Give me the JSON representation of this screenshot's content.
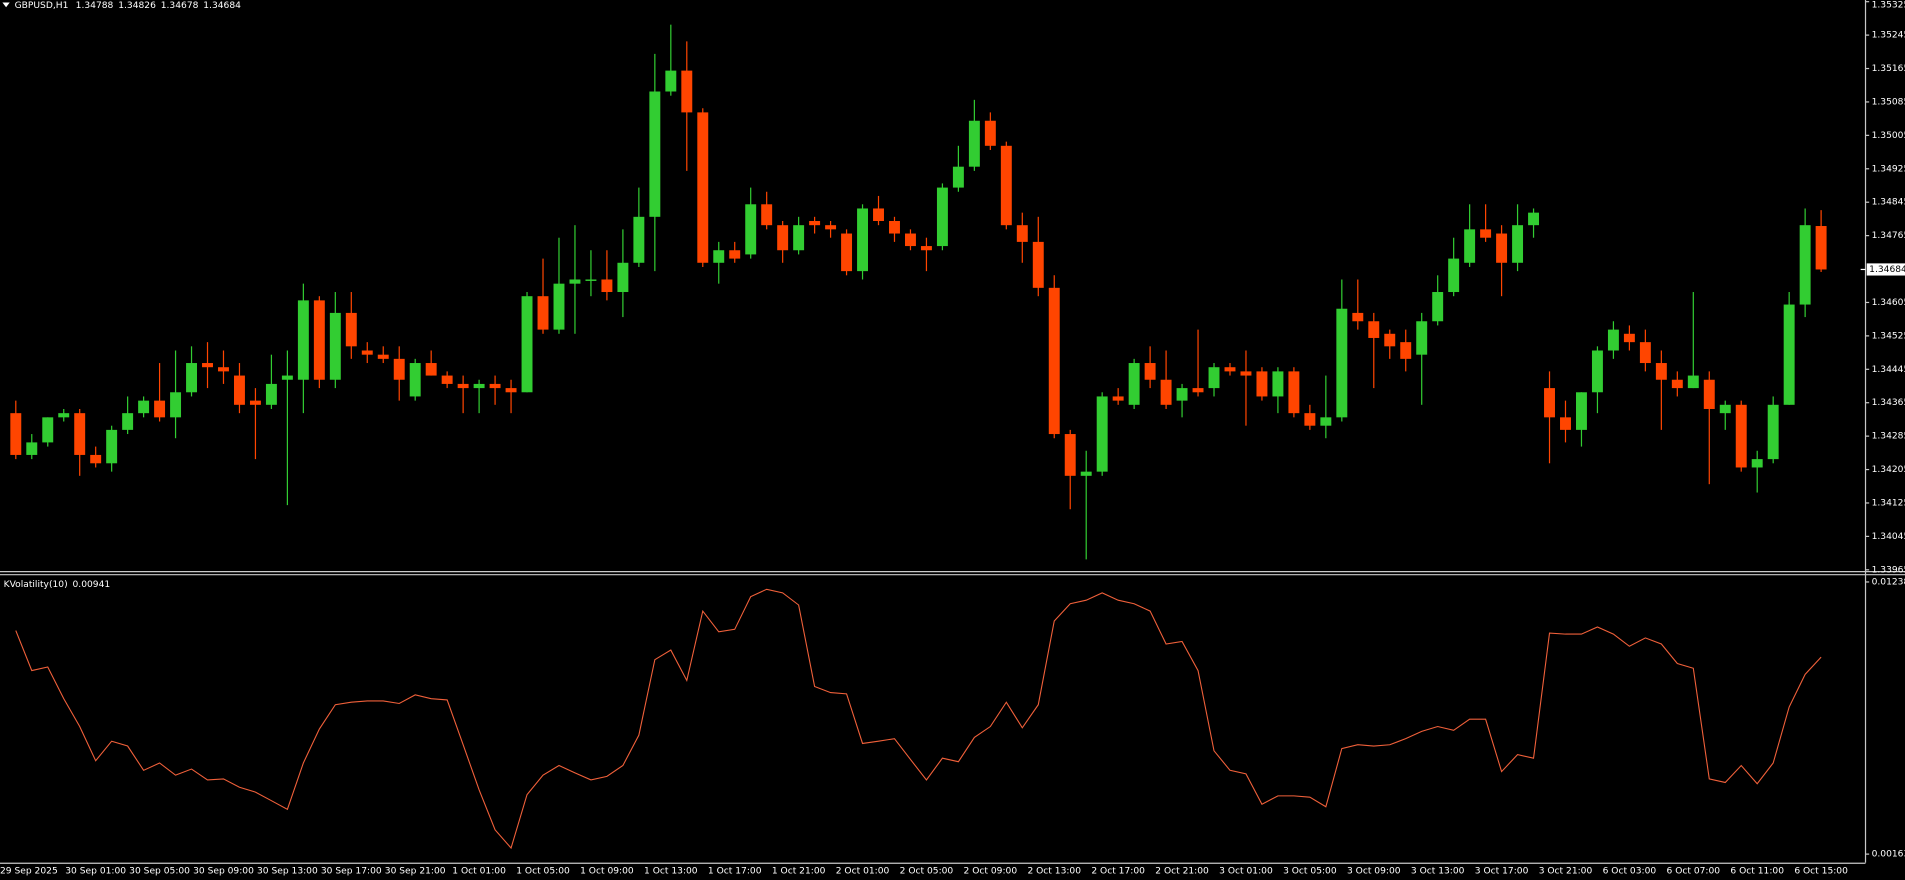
{
  "chart_data": [
    {
      "type": "candlestick",
      "title": "GBPUSD,H1",
      "categories": [
        "29 Sep 2025",
        null,
        null,
        null,
        null,
        "30 Sep 01:00",
        null,
        null,
        null,
        "30 Sep 05:00",
        null,
        null,
        null,
        "30 Sep 09:00",
        null,
        null,
        null,
        "30 Sep 13:00",
        null,
        null,
        null,
        "30 Sep 17:00",
        null,
        null,
        null,
        "30 Sep 21:00",
        null,
        null,
        null,
        "1 Oct 01:00",
        null,
        null,
        null,
        "1 Oct 05:00",
        null,
        null,
        null,
        "1 Oct 09:00",
        null,
        null,
        null,
        "1 Oct 13:00",
        null,
        null,
        null,
        "1 Oct 17:00",
        null,
        null,
        null,
        "1 Oct 21:00",
        null,
        null,
        null,
        "2 Oct 01:00",
        null,
        null,
        null,
        "2 Oct 05:00",
        null,
        null,
        null,
        "2 Oct 09:00",
        null,
        null,
        null,
        "2 Oct 13:00",
        null,
        null,
        null,
        "2 Oct 17:00",
        null,
        null,
        null,
        "2 Oct 21:00",
        null,
        null,
        null,
        "3 Oct 01:00",
        null,
        null,
        null,
        "3 Oct 05:00",
        null,
        null,
        null,
        "3 Oct 09:00",
        null,
        null,
        null,
        "3 Oct 13:00",
        null,
        null,
        null,
        "3 Oct 17:00",
        null,
        null,
        null,
        "3 Oct 21:00",
        null,
        null,
        null,
        "6 Oct 03:00",
        null,
        null,
        null,
        "6 Oct 07:00",
        null,
        null,
        null,
        "6 Oct 11:00",
        null,
        null,
        null,
        "6 Oct 15:00"
      ],
      "open": [
        1.3434,
        1.3424,
        1.3427,
        1.3433,
        1.3434,
        1.3424,
        1.3422,
        1.343,
        1.3434,
        1.3437,
        1.3433,
        1.3439,
        1.3446,
        1.3445,
        1.3443,
        1.3437,
        1.3436,
        1.3442,
        1.3442,
        1.3461,
        1.3442,
        1.3458,
        1.3449,
        1.3448,
        1.3447,
        1.3438,
        1.3446,
        1.3443,
        1.3441,
        1.344,
        1.3441,
        1.344,
        1.3439,
        1.3462,
        1.3454,
        1.3465,
        1.3466,
        1.3466,
        1.3463,
        1.347,
        1.3481,
        1.3511,
        1.3516,
        1.3506,
        1.347,
        1.3473,
        1.3472,
        1.3484,
        1.3479,
        1.3473,
        1.348,
        1.3479,
        1.3477,
        1.3468,
        1.3483,
        1.348,
        1.3477,
        1.3474,
        1.3474,
        1.3488,
        1.3493,
        1.3504,
        1.3498,
        1.3479,
        1.3475,
        1.3464,
        1.3429,
        1.3419,
        1.342,
        1.3438,
        1.3436,
        1.3446,
        1.3442,
        1.3437,
        1.344,
        1.344,
        1.3445,
        1.3444,
        1.3444,
        1.3438,
        1.3444,
        1.3434,
        1.3431,
        1.3433,
        1.3458,
        1.3456,
        1.3453,
        1.3451,
        1.3448,
        1.3456,
        1.3463,
        1.347,
        1.3478,
        1.3477,
        1.347,
        1.3479,
        1.344,
        1.3433,
        1.343,
        1.3439,
        1.3449,
        1.3453,
        1.3451,
        1.3446,
        1.3442,
        1.344,
        1.3442,
        1.3434,
        1.3436,
        1.3421,
        1.3423,
        1.3436,
        1.346,
        1.34788
      ],
      "high": [
        1.3437,
        1.3429,
        1.3433,
        1.3435,
        1.3435,
        1.3426,
        1.3431,
        1.3438,
        1.3438,
        1.3446,
        1.3449,
        1.345,
        1.3451,
        1.3449,
        1.3446,
        1.344,
        1.3448,
        1.3449,
        1.3465,
        1.3462,
        1.3463,
        1.3463,
        1.3451,
        1.345,
        1.345,
        1.3447,
        1.3449,
        1.3444,
        1.3443,
        1.3442,
        1.3443,
        1.3442,
        1.3463,
        1.3471,
        1.3476,
        1.3479,
        1.3473,
        1.3473,
        1.3478,
        1.3488,
        1.352,
        1.3527,
        1.3523,
        1.3507,
        1.3475,
        1.3475,
        1.3488,
        1.3487,
        1.348,
        1.3481,
        1.3481,
        1.348,
        1.3478,
        1.3484,
        1.3486,
        1.3481,
        1.3478,
        1.3476,
        1.3489,
        1.3498,
        1.3509,
        1.3506,
        1.3499,
        1.3482,
        1.3481,
        1.3467,
        1.343,
        1.3425,
        1.3439,
        1.344,
        1.3447,
        1.345,
        1.3449,
        1.3441,
        1.3454,
        1.3446,
        1.3446,
        1.3449,
        1.3445,
        1.3445,
        1.3445,
        1.3436,
        1.3443,
        1.3466,
        1.3466,
        1.3458,
        1.3454,
        1.3454,
        1.3458,
        1.3467,
        1.3476,
        1.3484,
        1.3484,
        1.3479,
        1.3484,
        1.3483,
        1.3444,
        1.3437,
        1.3439,
        1.345,
        1.3456,
        1.3455,
        1.3454,
        1.3449,
        1.3444,
        1.3463,
        1.3444,
        1.3437,
        1.3437,
        1.3425,
        1.3438,
        1.3463,
        1.3483,
        1.34826
      ],
      "low": [
        1.3423,
        1.3423,
        1.3426,
        1.3432,
        1.3419,
        1.3421,
        1.342,
        1.3429,
        1.3433,
        1.3432,
        1.3428,
        1.3438,
        1.344,
        1.3441,
        1.3434,
        1.3423,
        1.3435,
        1.3412,
        1.3434,
        1.344,
        1.344,
        1.3447,
        1.3446,
        1.3446,
        1.3437,
        1.3437,
        1.3443,
        1.344,
        1.3434,
        1.3434,
        1.3436,
        1.3434,
        1.3439,
        1.3453,
        1.3453,
        1.3453,
        1.3462,
        1.3461,
        1.3457,
        1.3469,
        1.3468,
        1.351,
        1.3492,
        1.3469,
        1.3465,
        1.347,
        1.3471,
        1.3478,
        1.347,
        1.3472,
        1.3477,
        1.3476,
        1.3467,
        1.3466,
        1.3479,
        1.3475,
        1.3473,
        1.3468,
        1.3473,
        1.3487,
        1.3492,
        1.3497,
        1.3478,
        1.347,
        1.3462,
        1.3428,
        1.3411,
        1.3399,
        1.3419,
        1.3436,
        1.3435,
        1.344,
        1.3435,
        1.3433,
        1.3438,
        1.3438,
        1.3443,
        1.3431,
        1.3437,
        1.3434,
        1.3433,
        1.343,
        1.3428,
        1.3432,
        1.3454,
        1.344,
        1.3447,
        1.3444,
        1.3436,
        1.3455,
        1.3462,
        1.3469,
        1.3475,
        1.3462,
        1.3468,
        1.3476,
        1.3422,
        1.3427,
        1.3426,
        1.3434,
        1.3447,
        1.3449,
        1.3444,
        1.343,
        1.3438,
        1.344,
        1.3417,
        1.343,
        1.342,
        1.3415,
        1.3422,
        1.3436,
        1.3457,
        1.34678
      ],
      "close": [
        1.3424,
        1.3427,
        1.3433,
        1.3434,
        1.3424,
        1.3422,
        1.343,
        1.3434,
        1.3437,
        1.3433,
        1.3439,
        1.3446,
        1.3445,
        1.3444,
        1.3436,
        1.3436,
        1.3441,
        1.3443,
        1.3461,
        1.3442,
        1.3458,
        1.345,
        1.3448,
        1.3447,
        1.3442,
        1.3446,
        1.3443,
        1.3441,
        1.344,
        1.3441,
        1.344,
        1.3439,
        1.3462,
        1.3454,
        1.3465,
        1.3466,
        1.3466,
        1.3463,
        1.347,
        1.3481,
        1.3511,
        1.3516,
        1.3506,
        1.347,
        1.3473,
        1.3471,
        1.3484,
        1.3479,
        1.3473,
        1.3479,
        1.3479,
        1.3478,
        1.3468,
        1.3483,
        1.348,
        1.3477,
        1.3474,
        1.3473,
        1.3488,
        1.3493,
        1.3504,
        1.3498,
        1.3479,
        1.3475,
        1.3464,
        1.3429,
        1.3419,
        1.342,
        1.3438,
        1.3437,
        1.3446,
        1.3442,
        1.3436,
        1.344,
        1.3439,
        1.3445,
        1.3444,
        1.3443,
        1.3438,
        1.3444,
        1.3434,
        1.3431,
        1.3433,
        1.3459,
        1.3456,
        1.3452,
        1.345,
        1.3447,
        1.3456,
        1.3463,
        1.3471,
        1.3478,
        1.3476,
        1.347,
        1.3479,
        1.3482,
        1.3433,
        1.343,
        1.3439,
        1.3449,
        1.3454,
        1.3451,
        1.3446,
        1.3442,
        1.344,
        1.3443,
        1.3435,
        1.3436,
        1.3421,
        1.3423,
        1.3436,
        1.346,
        1.3479,
        1.34684
      ],
      "up_color": "#32cd32",
      "down_color": "#ff4500",
      "ylim": [
        1.33965,
        1.35329
      ],
      "yticks": [
        1.35325,
        1.35245,
        1.35165,
        1.35085,
        1.35005,
        1.34925,
        1.34845,
        1.34765,
        1.34605,
        1.34525,
        1.34445,
        1.34365,
        1.34285,
        1.34205,
        1.34125,
        1.34045,
        1.33965
      ]
    },
    {
      "type": "line",
      "title": "KVolatility(10)",
      "color": "#f0603a",
      "values": [
        0.01046,
        0.00888,
        0.00902,
        0.00777,
        0.00667,
        0.00532,
        0.00609,
        0.0059,
        0.00494,
        0.00523,
        0.00475,
        0.00499,
        0.00456,
        0.0046,
        0.00427,
        0.00408,
        0.00374,
        0.0034,
        0.00523,
        0.00657,
        0.00753,
        0.00763,
        0.00768,
        0.00768,
        0.00758,
        0.00792,
        0.00777,
        0.00772,
        0.00595,
        0.00417,
        0.00259,
        0.00187,
        0.00398,
        0.00475,
        0.00513,
        0.00484,
        0.00456,
        0.0047,
        0.00513,
        0.00633,
        0.00931,
        0.00969,
        0.00849,
        0.01123,
        0.01041,
        0.01051,
        0.0118,
        0.01209,
        0.01195,
        0.01147,
        0.00825,
        0.00801,
        0.00796,
        0.006,
        0.00609,
        0.00619,
        0.00537,
        0.00456,
        0.00542,
        0.00528,
        0.00624,
        0.00667,
        0.00763,
        0.00662,
        0.00753,
        0.01084,
        0.01152,
        0.01166,
        0.01195,
        0.01166,
        0.01152,
        0.01123,
        0.00993,
        0.01003,
        0.00888,
        0.00571,
        0.00494,
        0.0048,
        0.0036,
        0.00393,
        0.00393,
        0.00388,
        0.0035,
        0.0058,
        0.00595,
        0.0059,
        0.00595,
        0.00619,
        0.00648,
        0.00667,
        0.00652,
        0.00696,
        0.00696,
        0.00489,
        0.00556,
        0.00542,
        0.01036,
        0.01032,
        0.01032,
        0.0106,
        0.01032,
        0.00984,
        0.01017,
        0.00993,
        0.00916,
        0.00897,
        0.0046,
        0.00446,
        0.00513,
        0.00441,
        0.00523,
        0.00744,
        0.00873,
        0.00941
      ],
      "ylim": [
        0.00163,
        0.01238
      ],
      "yticks": [
        0.01238,
        0.00163
      ]
    }
  ]
}
